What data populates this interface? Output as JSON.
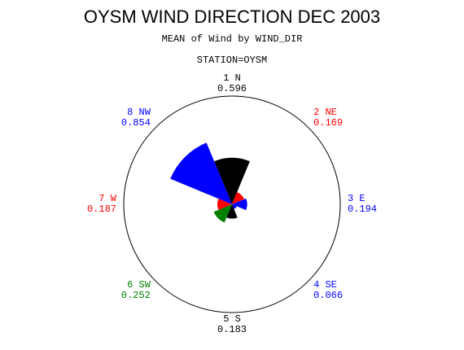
{
  "chart_data": {
    "type": "star",
    "title": "OYSM WIND DIRECTION DEC 2003",
    "subtitle": "MEAN of Wind by WIND_DIR",
    "group_label": "STATION=OYSM",
    "categories": [
      "1 N",
      "2 NE",
      "3 E",
      "4 SE",
      "5 S",
      "6 SW",
      "7 W",
      "8 NW"
    ],
    "values": [
      0.596,
      0.169,
      0.194,
      0.066,
      0.183,
      0.252,
      0.187,
      0.854
    ],
    "colors": [
      "#000000",
      "#ff0000",
      "#0000ff",
      "#0000ff",
      "#000000",
      "#008000",
      "#ff0000",
      "#0000ff"
    ]
  }
}
